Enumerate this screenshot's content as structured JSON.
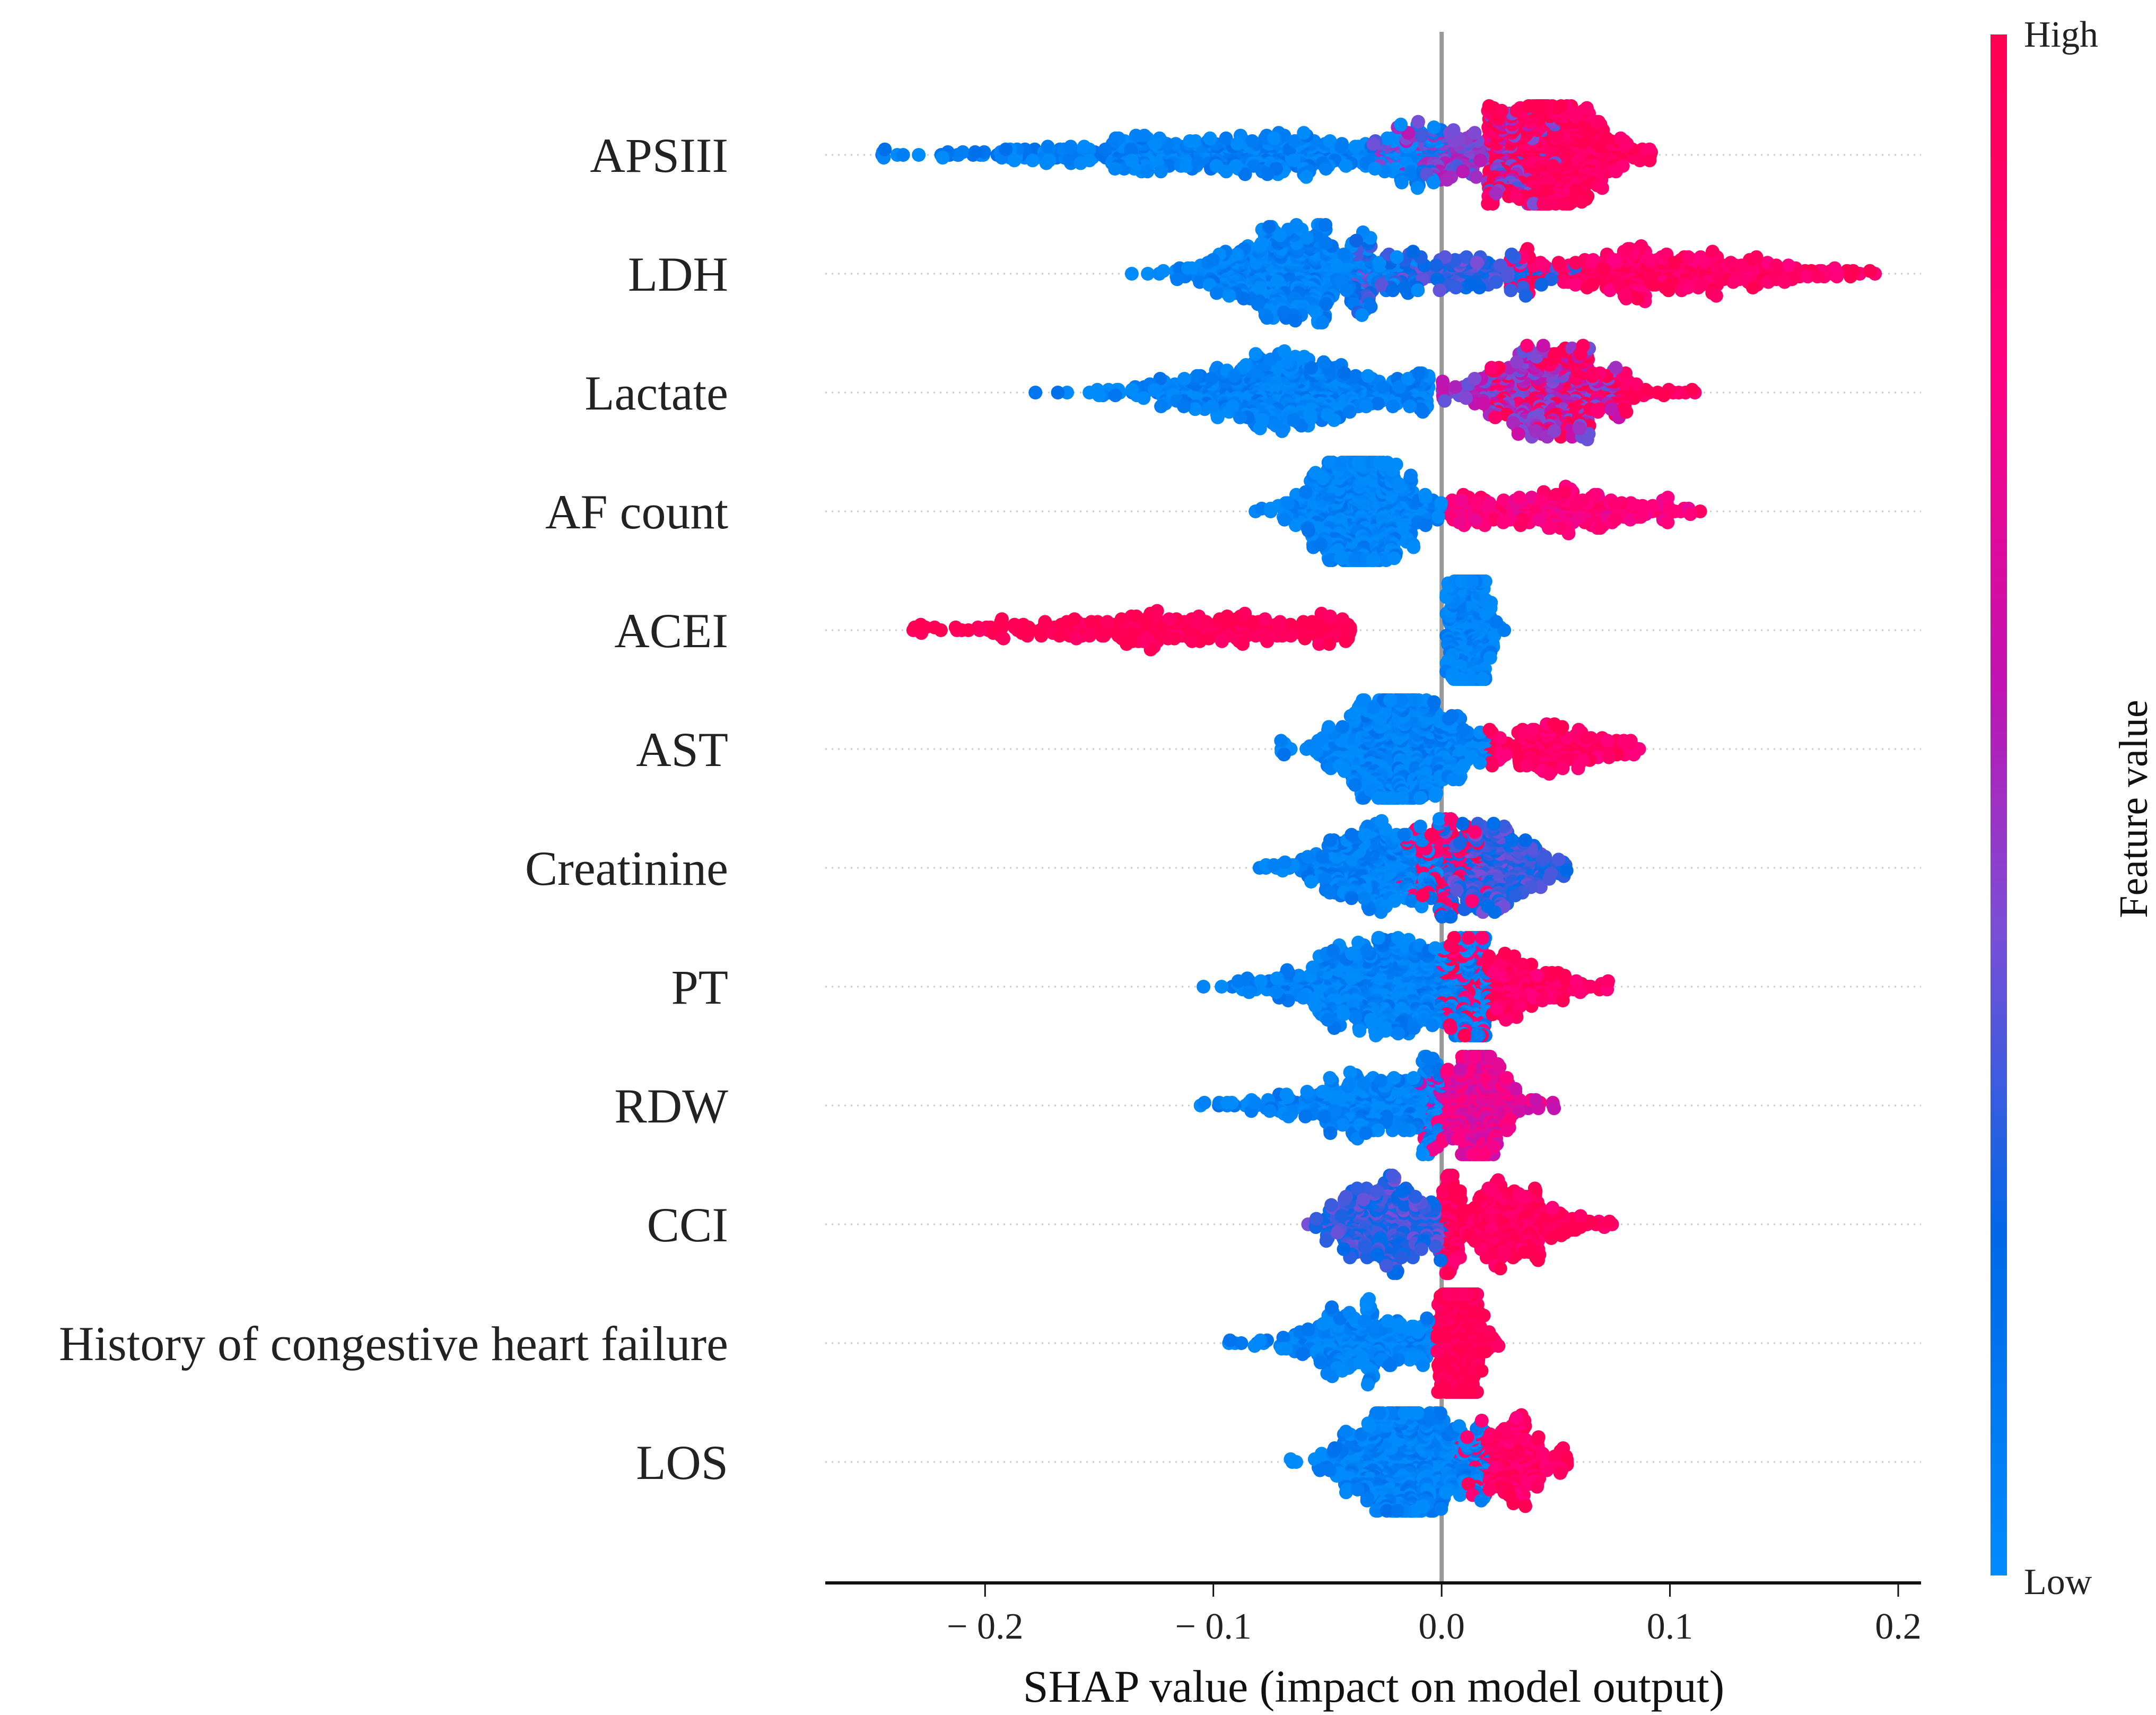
{
  "chart_data": {
    "type": "scatter",
    "subtype": "shap-beeswarm",
    "xlabel": "SHAP value (impact on model output)",
    "xlim": [
      -0.27,
      0.21
    ],
    "xticks": [
      -0.2,
      -0.1,
      0.0,
      0.1,
      0.2
    ],
    "xtick_labels": [
      "− 0.2",
      "− 0.1",
      "0.0",
      "0.1",
      "0.2"
    ],
    "colorbar": {
      "label": "Feature value",
      "high": "High",
      "low": "Low",
      "colors": [
        "#008bfb",
        "#0068e6",
        "#7a4fd6",
        "#c013b0",
        "#ff0080",
        "#ff0052"
      ]
    },
    "note": "clusters: [center SHAP value, spread, point count, feature value 0=low..1=high, min, max]",
    "features": [
      {
        "name": "APSIII",
        "clusters": [
          [
            -0.09,
            0.06,
            520,
            0.05,
            -0.25,
            0.0
          ],
          [
            0.01,
            0.02,
            200,
            0.45,
            -0.03,
            0.05
          ],
          [
            0.05,
            0.018,
            520,
            0.95,
            0.02,
            0.092
          ]
        ]
      },
      {
        "name": "LDH",
        "clusters": [
          [
            -0.065,
            0.022,
            520,
            0.05,
            -0.14,
            -0.01
          ],
          [
            0.0,
            0.03,
            220,
            0.3,
            -0.04,
            0.06
          ],
          [
            0.1,
            0.04,
            360,
            0.9,
            0.03,
            0.19
          ]
        ]
      },
      {
        "name": "Lactate",
        "clusters": [
          [
            -0.07,
            0.035,
            560,
            0.05,
            -0.19,
            -0.005
          ],
          [
            0.04,
            0.018,
            300,
            0.5,
            0.0,
            0.08
          ],
          [
            0.06,
            0.022,
            200,
            0.95,
            0.02,
            0.12
          ]
        ]
      },
      {
        "name": "AF count",
        "clusters": [
          [
            -0.035,
            0.015,
            600,
            0.03,
            -0.083,
            0.0
          ],
          [
            0.05,
            0.028,
            260,
            0.8,
            0.003,
            0.125
          ]
        ]
      },
      {
        "name": "ACEI",
        "clusters": [
          [
            -0.11,
            0.05,
            330,
            1.0,
            -0.235,
            -0.04
          ],
          [
            0.012,
            0.005,
            500,
            0.02,
            0.002,
            0.028
          ]
        ]
      },
      {
        "name": "AST",
        "clusters": [
          [
            -0.02,
            0.018,
            620,
            0.04,
            -0.072,
            0.02
          ],
          [
            0.05,
            0.018,
            200,
            0.9,
            0.02,
            0.088
          ]
        ]
      },
      {
        "name": "Creatinine",
        "clusters": [
          [
            -0.03,
            0.018,
            360,
            0.05,
            -0.1,
            0.0
          ],
          [
            0.0,
            0.01,
            110,
            0.9,
            -0.02,
            0.02
          ],
          [
            0.025,
            0.013,
            300,
            0.3,
            0.0,
            0.055
          ]
        ]
      },
      {
        "name": "PT",
        "clusters": [
          [
            -0.02,
            0.028,
            700,
            0.05,
            -0.122,
            0.02
          ],
          [
            0.03,
            0.018,
            260,
            0.9,
            0.0,
            0.073
          ]
        ]
      },
      {
        "name": "RDW",
        "clusters": [
          [
            -0.03,
            0.028,
            360,
            0.05,
            -0.147,
            0.0
          ],
          [
            0.015,
            0.011,
            350,
            0.7,
            -0.01,
            0.05
          ]
        ]
      },
      {
        "name": "CCI",
        "clusters": [
          [
            -0.025,
            0.013,
            320,
            0.3,
            -0.06,
            0.0
          ],
          [
            0.025,
            0.02,
            360,
            0.95,
            0.0,
            0.077
          ]
        ]
      },
      {
        "name": "History of congestive heart failure",
        "clusters": [
          [
            -0.035,
            0.02,
            300,
            0.03,
            -0.095,
            -0.005
          ],
          [
            0.008,
            0.005,
            420,
            1.0,
            -0.002,
            0.025
          ]
        ]
      },
      {
        "name": "LOS",
        "clusters": [
          [
            -0.015,
            0.018,
            620,
            0.05,
            -0.09,
            0.02
          ],
          [
            0.03,
            0.011,
            220,
            0.9,
            0.005,
            0.055
          ]
        ]
      }
    ]
  }
}
